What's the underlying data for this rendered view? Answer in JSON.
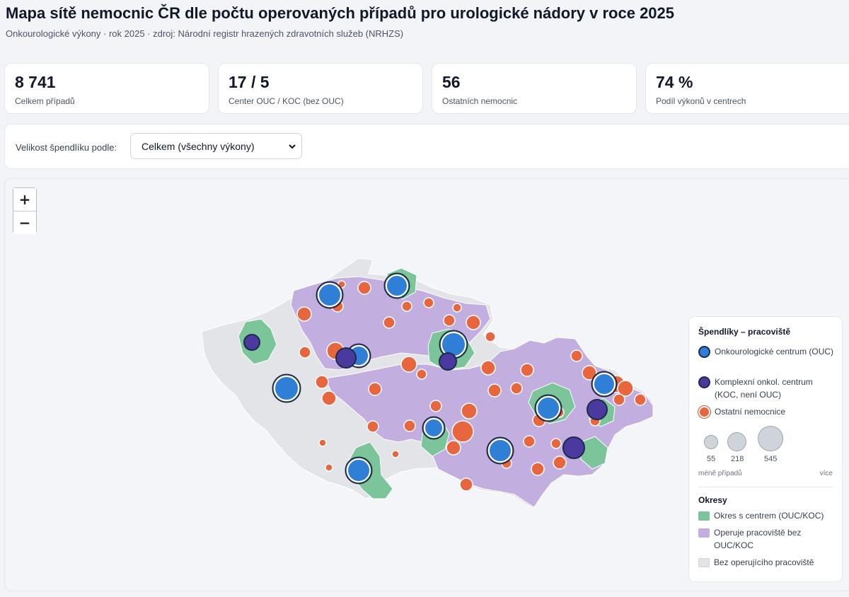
{
  "header": {
    "title": "Mapa sítě nemocnic ČR dle počtu operovaných případů pro urologické nádory v roce 2025",
    "subtitle": "Onkourologické výkony · rok 2025 · zdroj: Národní registr hrazených zdravotních služeb (NRHZS)"
  },
  "kpis": [
    {
      "value": "8 741",
      "label": "Celkem případů"
    },
    {
      "value": "17 / 5",
      "label": "Center OUC / KOC (bez OUC)"
    },
    {
      "value": "56",
      "label": "Ostatních nemocnic"
    },
    {
      "value": "74 %",
      "label": "Podíl výkonů v centrech"
    }
  ],
  "control": {
    "label": "Velikost špendlíku podle:",
    "selected": "Celkem (všechny výkony)"
  },
  "zoom": {
    "in": "+",
    "out": "−"
  },
  "legend": {
    "pins_title": "Špendlíky – pracoviště",
    "pins": [
      {
        "label": "Onkourologické centrum (OUC)",
        "color": "#2f7fd6"
      },
      {
        "label": "Komplexní onkol. centrum (KOC, není OUC)",
        "color": "#4a3aa0"
      },
      {
        "label": "Ostatní nemocnice",
        "color": "#e8663d"
      }
    ],
    "sizes": [
      "55",
      "218",
      "545"
    ],
    "size_min_label": "méně případů",
    "size_max_label": "více",
    "districts_title": "Okresy",
    "districts": [
      {
        "label": "Okres s centrem (OUC/KOC)",
        "color": "#7cc59a"
      },
      {
        "label": "Operuje pracoviště bez OUC/KOC",
        "color": "#c3aee0"
      },
      {
        "label": "Bez operujícího pracoviště",
        "color": "#e3e4e7"
      }
    ]
  },
  "colors": {
    "ouc": "#2f7fd6",
    "koc": "#4a3aa0",
    "other": "#e8663d",
    "center_district": "#7cc59a",
    "other_district": "#c3aee0",
    "none_district": "#e3e4e7"
  }
}
